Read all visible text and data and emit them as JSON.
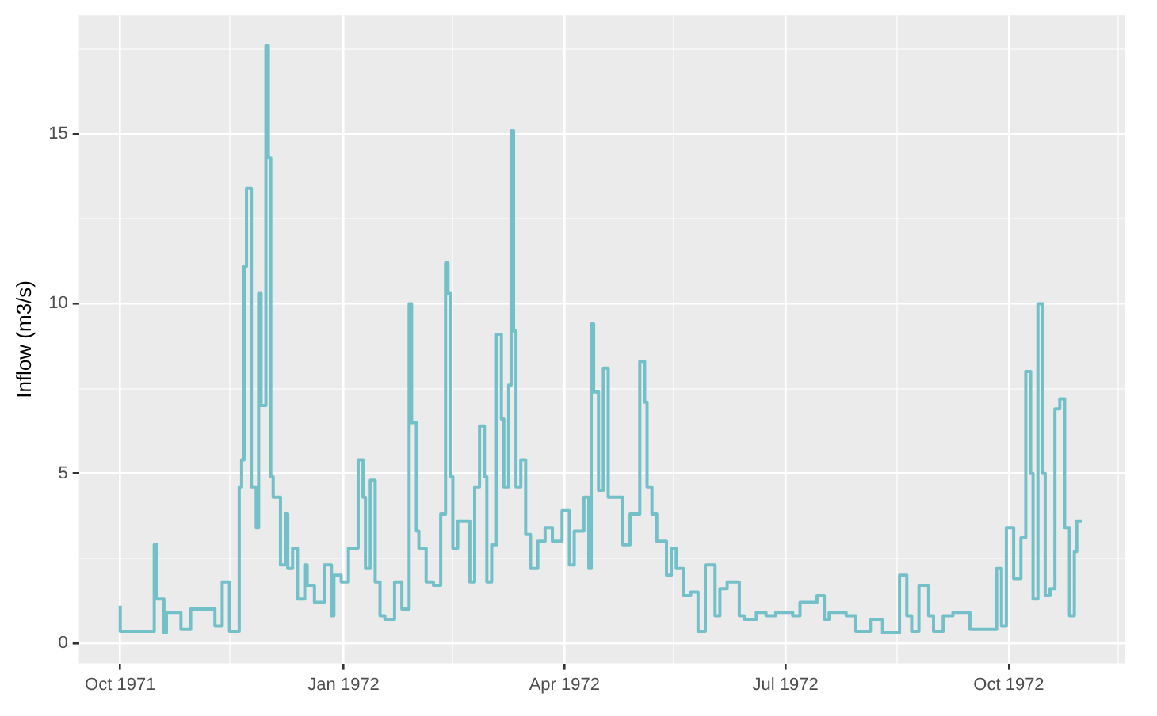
{
  "chart_data": {
    "type": "step",
    "ylabel": "Inflow (m3/s)",
    "color": "#74c0c9",
    "grid": true,
    "xlim": [
      "1971-09-14",
      "1972-11-18"
    ],
    "xticks": [
      {
        "value": "1971-10-01",
        "label": "Oct 1971"
      },
      {
        "value": "1971-11-15",
        "label": null
      },
      {
        "value": "1972-01-01",
        "label": "Jan 1972"
      },
      {
        "value": "1972-02-15",
        "label": null
      },
      {
        "value": "1972-04-01",
        "label": "Apr 1972"
      },
      {
        "value": "1972-05-16",
        "label": null
      },
      {
        "value": "1972-07-01",
        "label": "Jul 1972"
      },
      {
        "value": "1972-08-16",
        "label": null
      },
      {
        "value": "1972-10-01",
        "label": "Oct 1972"
      },
      {
        "value": "1972-11-15",
        "label": null
      }
    ],
    "ylim": [
      -0.6,
      18.5
    ],
    "yticks": [
      0,
      {
        "value": 2.5,
        "label": null
      },
      5,
      {
        "value": 7.5,
        "label": null
      },
      10,
      {
        "value": 12.5,
        "label": null
      },
      15,
      {
        "value": 17.5,
        "label": null
      }
    ],
    "x": [
      "1971-10-01",
      "1971-10-02",
      "1971-10-15",
      "1971-10-16",
      "1971-10-19",
      "1971-10-20",
      "1971-10-26",
      "1971-10-30",
      "1971-11-09",
      "1971-11-12",
      "1971-11-15",
      "1971-11-19",
      "1971-11-20",
      "1971-11-21",
      "1971-11-22",
      "1971-11-24",
      "1971-11-26",
      "1971-11-27",
      "1971-11-28",
      "1971-11-30",
      "1971-12-01",
      "1971-12-02",
      "1971-12-03",
      "1971-12-06",
      "1971-12-08",
      "1971-12-09",
      "1971-12-11",
      "1971-12-13",
      "1971-12-16",
      "1971-12-17",
      "1971-12-20",
      "1971-12-24",
      "1971-12-27",
      "1971-12-28",
      "1971-12-31",
      "1972-01-03",
      "1972-01-07",
      "1972-01-09",
      "1972-01-10",
      "1972-01-12",
      "1972-01-14",
      "1972-01-16",
      "1972-01-18",
      "1972-01-22",
      "1972-01-25",
      "1972-01-28",
      "1972-01-29",
      "1972-01-31",
      "1972-02-01",
      "1972-02-04",
      "1972-02-07",
      "1972-02-10",
      "1972-02-12",
      "1972-02-13",
      "1972-02-14",
      "1972-02-15",
      "1972-02-17",
      "1972-02-22",
      "1972-02-24",
      "1972-02-26",
      "1972-02-28",
      "1972-02-29",
      "1972-03-02",
      "1972-03-04",
      "1972-03-06",
      "1972-03-07",
      "1972-03-09",
      "1972-03-10",
      "1972-03-11",
      "1972-03-12",
      "1972-03-14",
      "1972-03-16",
      "1972-03-18",
      "1972-03-21",
      "1972-03-24",
      "1972-03-27",
      "1972-03-31",
      "1972-04-03",
      "1972-04-05",
      "1972-04-09",
      "1972-04-11",
      "1972-04-12",
      "1972-04-13",
      "1972-04-15",
      "1972-04-17",
      "1972-04-19",
      "1972-04-22",
      "1972-04-25",
      "1972-04-28",
      "1972-05-02",
      "1972-05-04",
      "1972-05-05",
      "1972-05-07",
      "1972-05-09",
      "1972-05-13",
      "1972-05-15",
      "1972-05-17",
      "1972-05-20",
      "1972-05-23",
      "1972-05-26",
      "1972-05-29",
      "1972-06-02",
      "1972-06-04",
      "1972-06-07",
      "1972-06-12",
      "1972-06-14",
      "1972-06-19",
      "1972-06-23",
      "1972-06-27",
      "1972-07-04",
      "1972-07-07",
      "1972-07-14",
      "1972-07-17",
      "1972-07-19",
      "1972-07-26",
      "1972-07-30",
      "1972-08-05",
      "1972-08-10",
      "1972-08-17",
      "1972-08-20",
      "1972-08-22",
      "1972-08-25",
      "1972-08-29",
      "1972-08-31",
      "1972-09-04",
      "1972-09-08",
      "1972-09-15",
      "1972-09-19",
      "1972-09-26",
      "1972-09-28",
      "1972-09-30",
      "1972-10-03",
      "1972-10-06",
      "1972-10-08",
      "1972-10-10",
      "1972-10-11",
      "1972-10-13",
      "1972-10-15",
      "1972-10-16",
      "1972-10-18",
      "1972-10-20",
      "1972-10-22",
      "1972-10-24",
      "1972-10-26",
      "1972-10-28",
      "1972-10-29",
      "1972-10-31"
    ],
    "values": [
      1.1,
      0.35,
      0.35,
      2.9,
      1.3,
      0.3,
      0.9,
      0.4,
      1.0,
      0.5,
      1.8,
      0.35,
      4.6,
      5.4,
      11.1,
      13.4,
      4.6,
      3.4,
      10.3,
      7.0,
      17.6,
      14.3,
      4.9,
      4.3,
      2.3,
      3.8,
      2.2,
      2.8,
      1.3,
      2.3,
      1.7,
      1.2,
      2.3,
      0.8,
      2.0,
      1.8,
      2.8,
      5.4,
      4.3,
      2.2,
      4.8,
      1.8,
      0.8,
      0.7,
      1.8,
      1.0,
      10.0,
      6.5,
      3.3,
      2.8,
      1.8,
      1.7,
      3.8,
      11.2,
      10.3,
      4.9,
      2.8,
      3.6,
      1.8,
      4.6,
      6.4,
      4.9,
      1.8,
      2.9,
      9.1,
      6.6,
      4.6,
      7.6,
      15.1,
      9.2,
      4.6,
      5.4,
      3.2,
      2.2,
      3.0,
      3.4,
      3.0,
      3.9,
      2.3,
      3.3,
      4.3,
      2.2,
      9.4,
      7.4,
      4.5,
      8.1,
      4.3,
      4.3,
      2.9,
      3.8,
      8.3,
      7.1,
      4.6,
      3.8,
      3.0,
      2.0,
      2.8,
      2.2,
      1.4,
      1.5,
      0.35,
      2.3,
      0.8,
      1.6,
      1.8,
      0.8,
      0.7,
      0.9,
      0.8,
      0.9,
      0.8,
      1.2,
      1.4,
      0.7,
      0.9,
      0.8,
      0.35,
      0.7,
      0.3,
      2.0,
      0.8,
      0.35,
      1.7,
      0.8,
      0.35,
      0.8,
      0.9,
      0.4,
      0.4,
      2.2,
      0.5,
      3.4,
      1.9,
      3.1,
      8.0,
      5.0,
      1.3,
      10.0,
      5.0,
      1.4,
      1.6,
      6.9,
      7.2,
      3.4,
      0.8,
      2.7,
      3.6
    ]
  }
}
